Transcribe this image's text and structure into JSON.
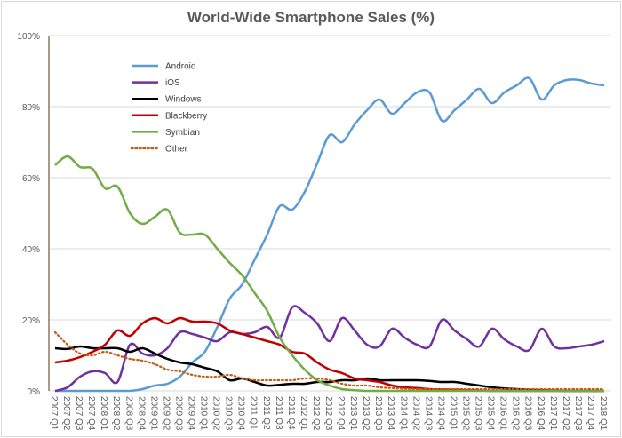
{
  "chart_data": {
    "type": "line",
    "title": "World-Wide Smartphone Sales (%)",
    "xlabel": "",
    "ylabel": "",
    "ylim": [
      0,
      100
    ],
    "yticks": [
      "0%",
      "20%",
      "40%",
      "60%",
      "80%",
      "100%"
    ],
    "grid": true,
    "legend_position": "top-left",
    "categories": [
      "2007 Q1",
      "2007 Q2",
      "2007 Q3",
      "2007 Q4",
      "2008 Q1",
      "2008 Q2",
      "2008 Q3",
      "2008 Q4",
      "2009 Q1",
      "2009 Q2",
      "2009 Q3",
      "2009 Q4",
      "2010 Q1",
      "2010 Q2",
      "2010 Q3",
      "2010 Q4",
      "2011 Q1",
      "2011 Q2",
      "2011 Q3",
      "2011 Q4",
      "2012 Q1",
      "2012 Q2",
      "2012 Q3",
      "2012 Q4",
      "2013 Q1",
      "2013 Q2",
      "2013 Q3",
      "2013 Q4",
      "2014 Q1",
      "2014 Q2",
      "2014 Q3",
      "2014 Q4",
      "2015 Q1",
      "2015 Q2",
      "2015 Q3",
      "2015 Q4",
      "2016 Q1",
      "2016 Q2",
      "2016 Q3",
      "2016 Q4",
      "2017 Q1",
      "2017 Q2",
      "2017 Q3",
      "2017 Q4",
      "2018 Q1"
    ],
    "series": [
      {
        "name": "Android",
        "color": "#5b9bd5",
        "style": "solid",
        "values": [
          0,
          0,
          0,
          0,
          0,
          0,
          0,
          0.5,
          1.5,
          2,
          4,
          8,
          11,
          18,
          26,
          30,
          37,
          44,
          52,
          51,
          56,
          64,
          72,
          70,
          75,
          79,
          82,
          78,
          81,
          84,
          84,
          76,
          79,
          82,
          85,
          81,
          84,
          86,
          88,
          82,
          86,
          87.5,
          87.5,
          86.5,
          86
        ]
      },
      {
        "name": "iOS",
        "color": "#7030a0",
        "style": "solid",
        "values": [
          0,
          1,
          4,
          5.5,
          5,
          2.5,
          13,
          10.5,
          10,
          12,
          16.5,
          16,
          15,
          14,
          16.5,
          16,
          16.5,
          18,
          15,
          23.5,
          22,
          19,
          14,
          20.5,
          17,
          13,
          12.5,
          17.5,
          15,
          13,
          12.5,
          20,
          17,
          14.5,
          12.5,
          17.5,
          14.5,
          12.5,
          11.5,
          17.5,
          12.5,
          12,
          12.5,
          13,
          14
        ]
      },
      {
        "name": "Windows",
        "color": "#000000",
        "style": "solid",
        "values": [
          12,
          11.8,
          12.5,
          12,
          12,
          12,
          11,
          12,
          10.5,
          9,
          8,
          7.5,
          6.5,
          5.5,
          3,
          3.5,
          2.5,
          1.5,
          1.7,
          2,
          2,
          2.5,
          2.5,
          3,
          3,
          3.5,
          3,
          3,
          3,
          3,
          2.8,
          2.5,
          2.5,
          2,
          1.5,
          1,
          0.7,
          0.5,
          0.3,
          0.2,
          0.1,
          0,
          0,
          0,
          0
        ]
      },
      {
        "name": "Blackberry",
        "color": "#c00000",
        "style": "solid",
        "values": [
          8,
          8.5,
          9.5,
          11,
          13,
          17,
          15.5,
          19,
          20.5,
          19,
          20.5,
          19.5,
          19.5,
          19,
          17,
          16,
          15,
          14,
          13,
          11,
          10.5,
          8,
          6,
          5,
          3.5,
          3,
          2.5,
          1.5,
          1,
          0.8,
          0.5,
          0.4,
          0.3,
          0.2,
          0.1,
          0,
          0,
          0,
          0,
          0,
          0,
          0,
          0,
          0,
          0
        ]
      },
      {
        "name": "Symbian",
        "color": "#70ad47",
        "style": "solid",
        "values": [
          63.5,
          66,
          63,
          62.5,
          57,
          57.5,
          50,
          47,
          49,
          51,
          44.5,
          44,
          44,
          40,
          36,
          32.5,
          27.5,
          22.5,
          15,
          10,
          6,
          3,
          1.5,
          0.5,
          0.2,
          0,
          0,
          0,
          0,
          0,
          0,
          0,
          0,
          0,
          0,
          0,
          0,
          0,
          0,
          0,
          0,
          0,
          0,
          0,
          0
        ]
      },
      {
        "name": "Other",
        "color": "#c55a11",
        "style": "dotted",
        "values": [
          16.5,
          13,
          10.5,
          10,
          11,
          10,
          9,
          8.5,
          7.5,
          6,
          5.5,
          4.5,
          4,
          4,
          4.5,
          3.5,
          3,
          3,
          3,
          3,
          3.5,
          3.5,
          3,
          2,
          1.5,
          1.5,
          1,
          0.8,
          0.6,
          0.5,
          0.5,
          0.5,
          0.5,
          0.5,
          0.5,
          0.5,
          0.5,
          0.5,
          0.5,
          0.5,
          0.5,
          0.5,
          0.5,
          0.5,
          0.5
        ]
      }
    ]
  }
}
